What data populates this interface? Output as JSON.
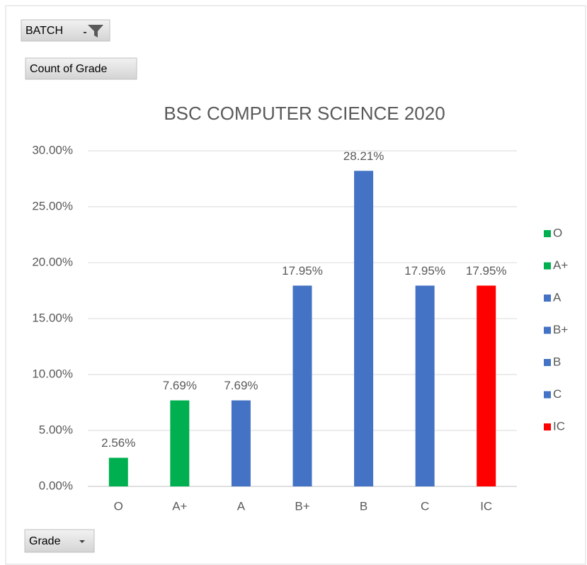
{
  "chart_data": {
    "type": "bar",
    "title": "BSC COMPUTER SCIENCE 2020",
    "filter_button": "BATCH",
    "value_button": "Count of Grade",
    "axis_button": "Grade",
    "categories": [
      "O",
      "A+",
      "A",
      "B+",
      "B",
      "C",
      "IC"
    ],
    "values": [
      2.56,
      7.69,
      7.69,
      17.95,
      28.21,
      17.95,
      17.95
    ],
    "value_labels": [
      "2.56%",
      "7.69%",
      "7.69%",
      "17.95%",
      "28.21%",
      "17.95%",
      "17.95%"
    ],
    "colors": [
      "#00b050",
      "#00b050",
      "#4472c4",
      "#4472c4",
      "#4472c4",
      "#4472c4",
      "#ff0000"
    ],
    "ylim": [
      0,
      30
    ],
    "yticks": [
      {
        "value": 0,
        "label": "0.00%"
      },
      {
        "value": 5,
        "label": "5.00%"
      },
      {
        "value": 10,
        "label": "10.00%"
      },
      {
        "value": 15,
        "label": "15.00%"
      },
      {
        "value": 20,
        "label": "20.00%"
      },
      {
        "value": 25,
        "label": "25.00%"
      },
      {
        "value": 30,
        "label": "30.00%"
      }
    ],
    "grid": true,
    "legend": "right"
  }
}
